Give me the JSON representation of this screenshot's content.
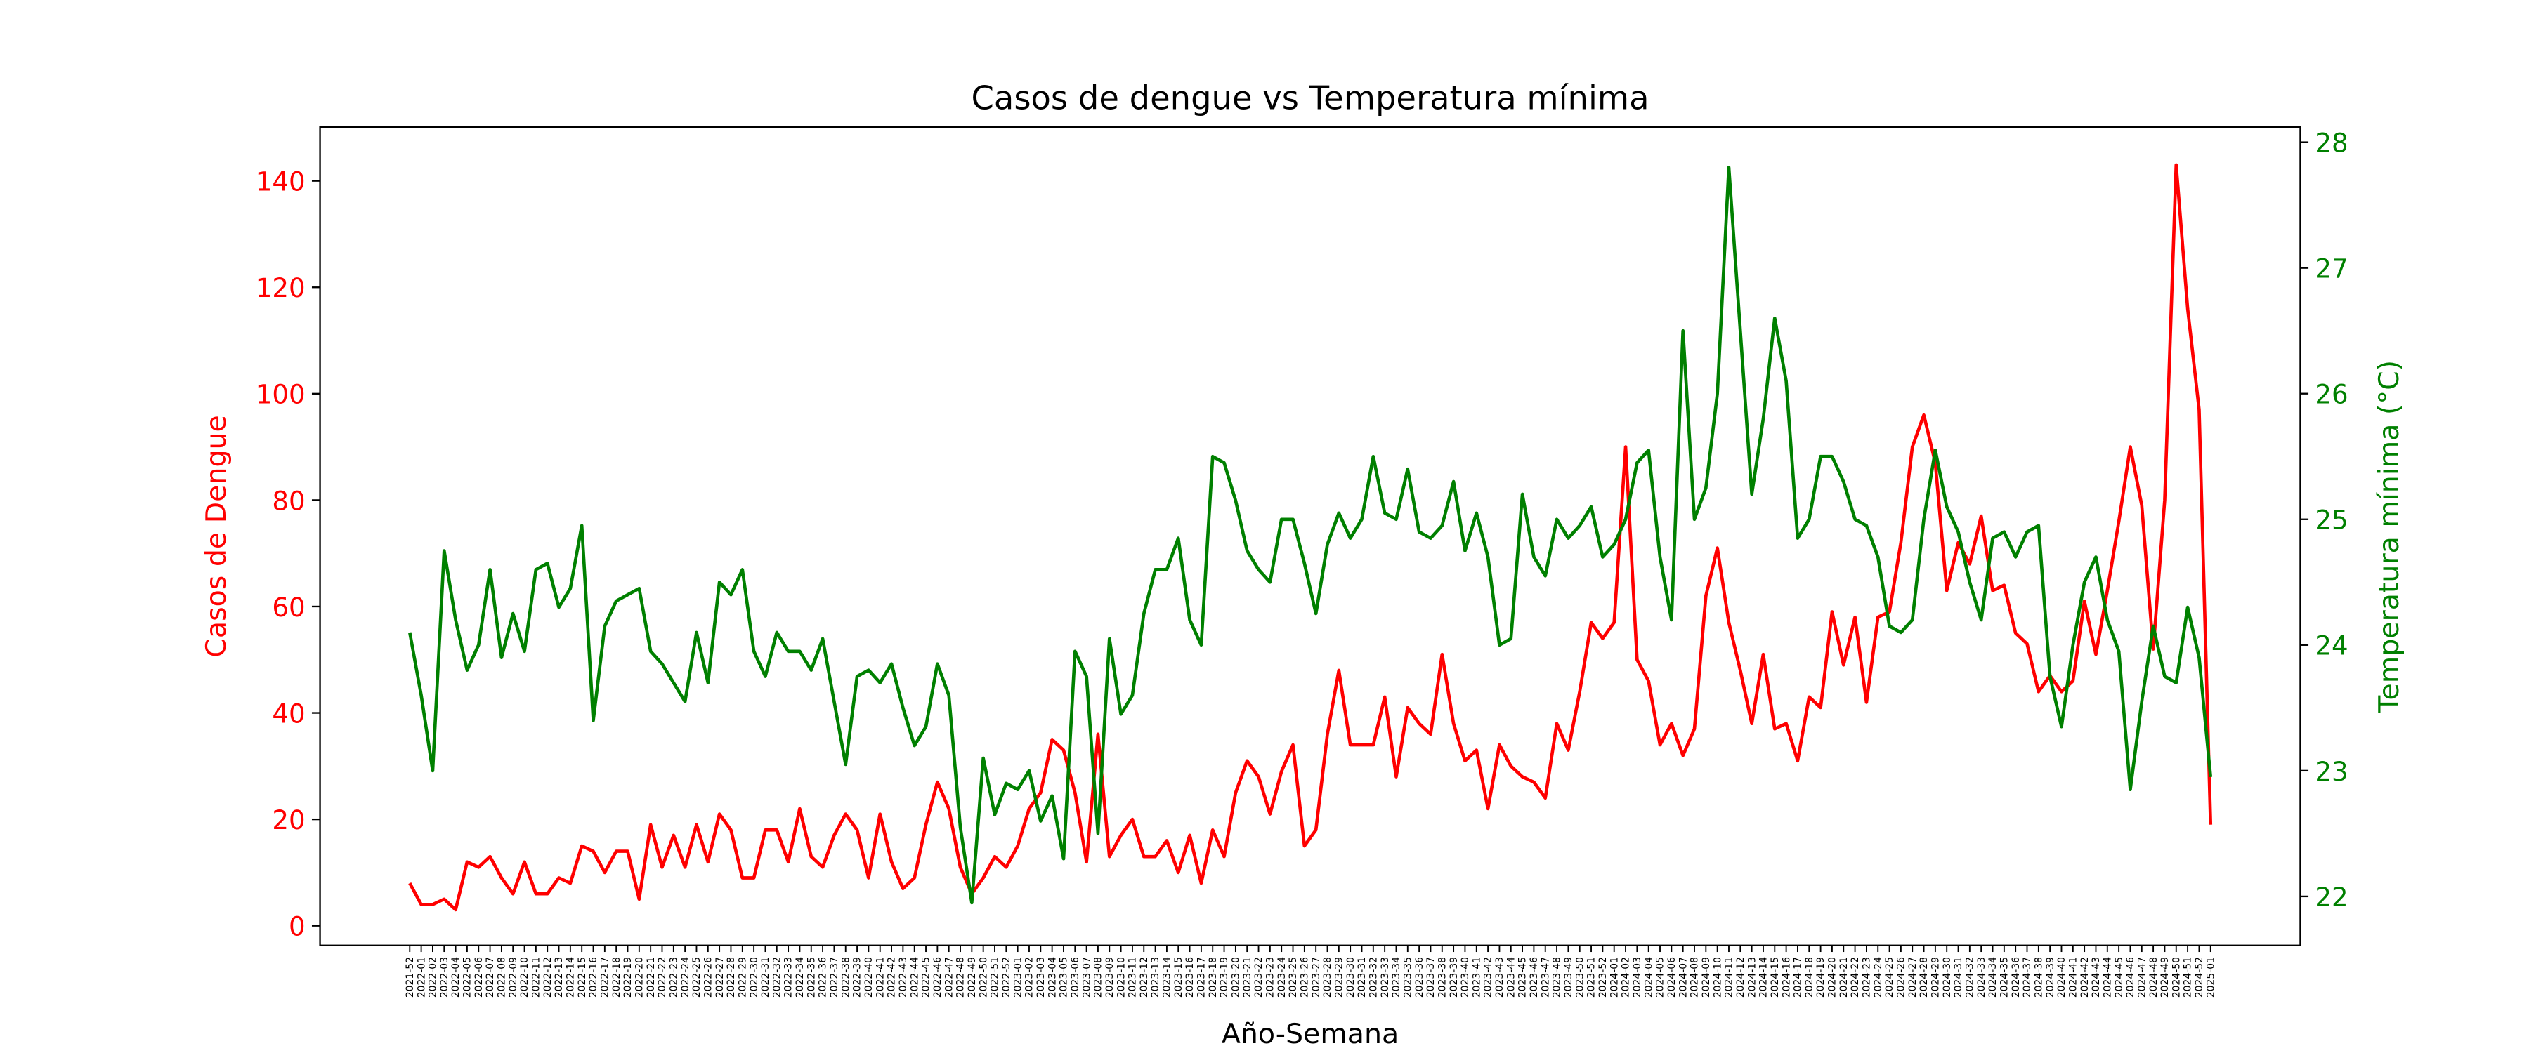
{
  "chart_data": {
    "type": "line",
    "title": "Casos de dengue vs Temperatura mínima",
    "xlabel": "Año-Semana",
    "ylabel": "Casos de Dengue",
    "y2label": "Temperatura mínima (°C)",
    "categories": [
      "2021-52",
      "2022-01",
      "2022-02",
      "2022-03",
      "2022-04",
      "2022-05",
      "2022-06",
      "2022-07",
      "2022-08",
      "2022-09",
      "2022-10",
      "2022-11",
      "2022-12",
      "2022-13",
      "2022-14",
      "2022-15",
      "2022-16",
      "2022-17",
      "2022-18",
      "2022-19",
      "2022-20",
      "2022-21",
      "2022-22",
      "2022-23",
      "2022-24",
      "2022-25",
      "2022-26",
      "2022-27",
      "2022-28",
      "2022-29",
      "2022-30",
      "2022-31",
      "2022-32",
      "2022-33",
      "2022-34",
      "2022-35",
      "2022-36",
      "2022-37",
      "2022-38",
      "2022-39",
      "2022-40",
      "2022-41",
      "2022-42",
      "2022-43",
      "2022-44",
      "2022-45",
      "2022-46",
      "2022-47",
      "2022-48",
      "2022-49",
      "2022-50",
      "2022-51",
      "2022-52",
      "2023-01",
      "2023-02",
      "2023-03",
      "2023-04",
      "2023-05",
      "2023-06",
      "2023-07",
      "2023-08",
      "2023-09",
      "2023-10",
      "2023-11",
      "2023-12",
      "2023-13",
      "2023-14",
      "2023-15",
      "2023-16",
      "2023-17",
      "2023-18",
      "2023-19",
      "2023-20",
      "2023-21",
      "2023-22",
      "2023-23",
      "2023-24",
      "2023-25",
      "2023-26",
      "2023-27",
      "2023-28",
      "2023-29",
      "2023-30",
      "2023-31",
      "2023-32",
      "2023-33",
      "2023-34",
      "2023-35",
      "2023-36",
      "2023-37",
      "2023-38",
      "2023-39",
      "2023-40",
      "2023-41",
      "2023-42",
      "2023-43",
      "2023-44",
      "2023-45",
      "2023-46",
      "2023-47",
      "2023-48",
      "2023-49",
      "2023-50",
      "2023-51",
      "2023-52",
      "2024-01",
      "2024-02",
      "2024-03",
      "2024-04",
      "2024-05",
      "2024-06",
      "2024-07",
      "2024-08",
      "2024-09",
      "2024-10",
      "2024-11",
      "2024-12",
      "2024-13",
      "2024-14",
      "2024-15",
      "2024-16",
      "2024-17",
      "2024-18",
      "2024-19",
      "2024-20",
      "2024-21",
      "2024-22",
      "2024-23",
      "2024-24",
      "2024-25",
      "2024-26",
      "2024-27",
      "2024-28",
      "2024-29",
      "2024-30",
      "2024-31",
      "2024-32",
      "2024-33",
      "2024-34",
      "2024-35",
      "2024-36",
      "2024-37",
      "2024-38",
      "2024-39",
      "2024-40",
      "2024-41",
      "2024-42",
      "2024-43",
      "2024-44",
      "2024-45",
      "2024-46",
      "2024-47",
      "2024-48",
      "2024-49",
      "2024-50",
      "2024-51",
      "2024-52",
      "2025-01"
    ],
    "series": [
      {
        "color": "#ff0000",
        "axis": "y",
        "values": [
          8,
          4,
          4,
          5,
          3,
          12,
          11,
          13,
          9,
          6,
          12,
          6,
          6,
          9,
          8,
          15,
          14,
          10,
          14,
          14,
          5,
          19,
          11,
          17,
          11,
          19,
          12,
          21,
          18,
          9,
          9,
          18,
          18,
          12,
          22,
          13,
          11,
          17,
          21,
          18,
          9,
          21,
          12,
          7,
          9,
          19,
          27,
          22,
          11,
          6,
          9,
          13,
          11,
          15,
          22,
          25,
          35,
          33,
          25,
          12,
          36,
          13,
          17,
          20,
          13,
          13,
          16,
          10,
          17,
          8,
          18,
          13,
          25,
          31,
          28,
          21,
          29,
          34,
          15,
          18,
          36,
          48,
          34,
          34,
          34,
          43,
          28,
          41,
          38,
          36,
          51,
          38,
          31,
          33,
          22,
          34,
          30,
          28,
          27,
          24,
          38,
          33,
          44,
          57,
          54,
          57,
          90,
          50,
          46,
          34,
          38,
          32,
          37,
          62,
          71,
          57,
          48,
          38,
          51,
          37,
          38,
          31,
          43,
          41,
          59,
          49,
          58,
          42,
          58,
          59,
          72,
          90,
          96,
          87,
          63,
          72,
          68,
          77,
          63,
          64,
          55,
          53,
          44,
          47,
          44,
          46,
          61,
          51,
          63,
          76,
          90,
          79,
          52,
          80,
          143,
          116,
          97,
          19
        ]
      },
      {
        "color": "#008000",
        "axis": "y2",
        "values": [
          24.1,
          23.6,
          23.0,
          24.75,
          24.2,
          23.8,
          24.0,
          24.6,
          23.9,
          24.25,
          23.95,
          24.6,
          24.65,
          24.3,
          24.45,
          24.95,
          23.4,
          24.15,
          24.35,
          24.4,
          24.45,
          23.95,
          23.85,
          23.7,
          23.55,
          24.1,
          23.7,
          24.5,
          24.4,
          24.6,
          23.95,
          23.75,
          24.1,
          23.95,
          23.95,
          23.8,
          24.05,
          23.55,
          23.05,
          23.75,
          23.8,
          23.7,
          23.85,
          23.5,
          23.2,
          23.35,
          23.85,
          23.6,
          22.55,
          21.95,
          23.1,
          22.65,
          22.9,
          22.85,
          23.0,
          22.6,
          22.8,
          22.3,
          23.95,
          23.75,
          22.5,
          24.05,
          23.45,
          23.6,
          24.25,
          24.6,
          24.6,
          24.85,
          24.2,
          24.0,
          25.5,
          25.45,
          25.15,
          24.75,
          24.6,
          24.5,
          25.0,
          25.0,
          24.65,
          24.25,
          24.8,
          25.05,
          24.85,
          25.0,
          25.5,
          25.05,
          25.0,
          25.4,
          24.9,
          24.85,
          24.95,
          25.3,
          24.75,
          25.05,
          24.7,
          24.0,
          24.05,
          25.2,
          24.7,
          24.55,
          25.0,
          24.85,
          24.95,
          25.1,
          24.7,
          24.8,
          25.0,
          25.45,
          25.55,
          24.7,
          24.2,
          26.5,
          25.0,
          25.25,
          26.0,
          27.8,
          26.5,
          25.2,
          25.8,
          26.6,
          26.1,
          24.85,
          25.0,
          25.5,
          25.5,
          25.3,
          25.0,
          24.95,
          24.7,
          24.15,
          24.1,
          24.2,
          25.0,
          25.55,
          25.1,
          24.9,
          24.5,
          24.2,
          24.85,
          24.9,
          24.7,
          24.9,
          24.95,
          23.75,
          23.35,
          24.0,
          24.5,
          24.7,
          24.2,
          23.95,
          22.85,
          23.55,
          24.15,
          23.75,
          23.7,
          24.3,
          23.9,
          22.95
        ]
      }
    ],
    "ylim": [
      -3.7,
      150.1
    ],
    "yticks": [
      0,
      20,
      40,
      60,
      80,
      100,
      120,
      140
    ],
    "y2lim": [
      21.61,
      28.12
    ],
    "y2ticks": [
      22,
      23,
      24,
      25,
      26,
      27,
      28
    ]
  }
}
